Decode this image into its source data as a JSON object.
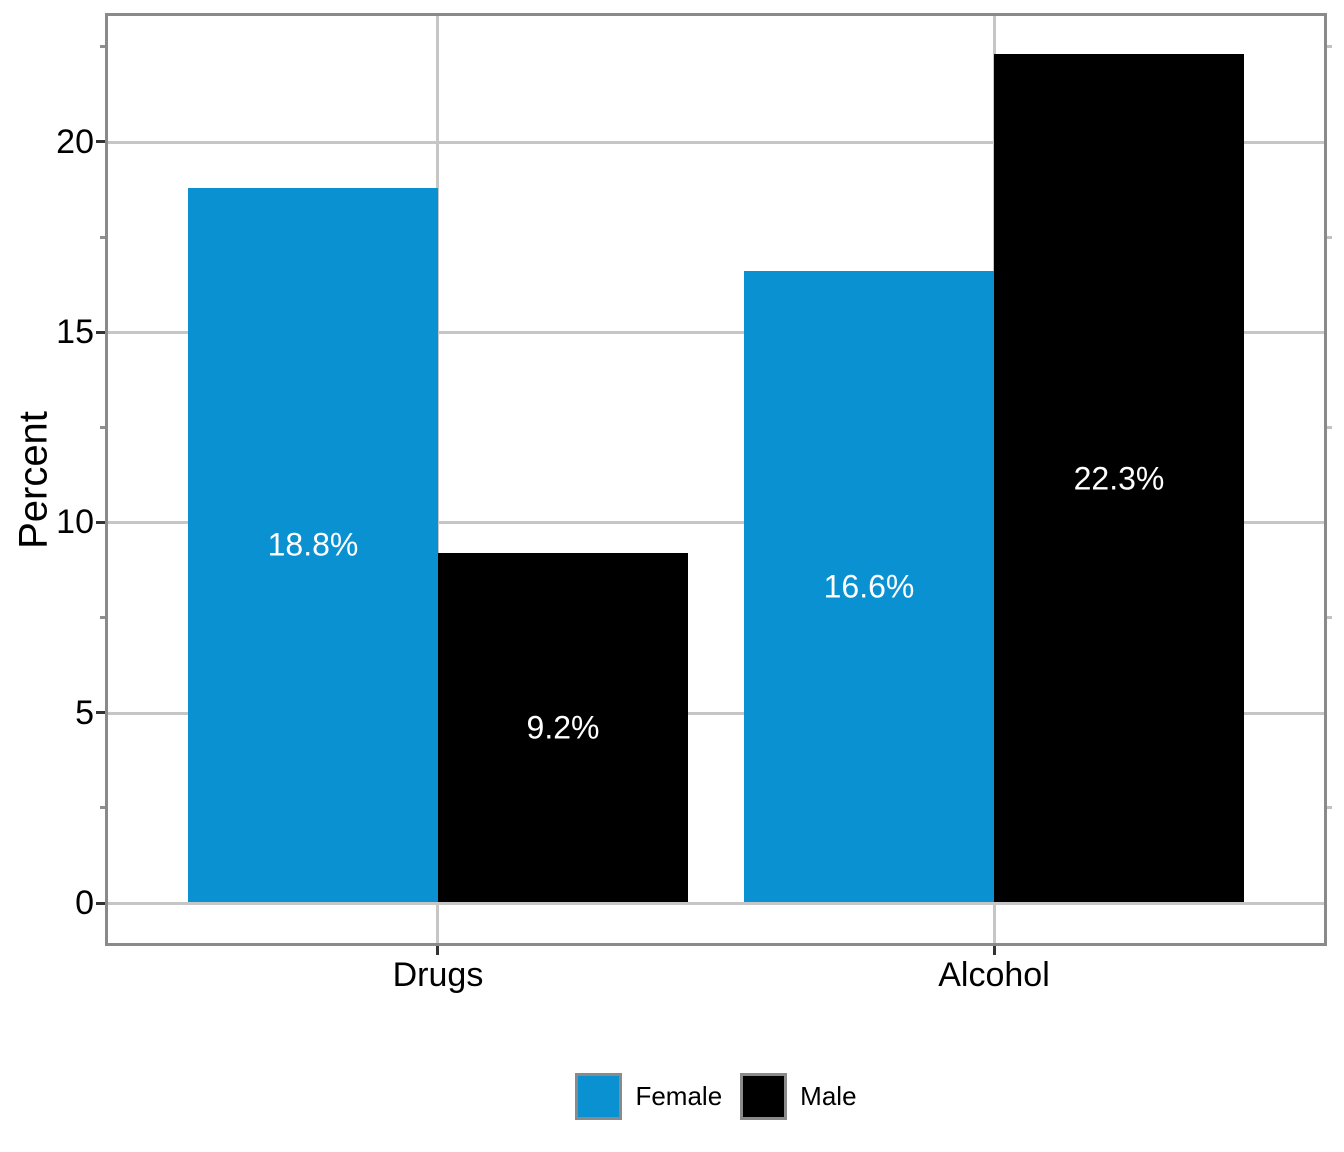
{
  "chart_data": {
    "type": "bar",
    "title": "",
    "categories": [
      "Drugs",
      "Alcohol"
    ],
    "series": [
      {
        "name": "Female",
        "color": "#0991D2",
        "values": [
          18.8,
          16.6
        ],
        "data_labels": [
          "18.8%",
          "16.6%"
        ]
      },
      {
        "name": "Male",
        "color": "#000000",
        "values": [
          9.2,
          22.3
        ],
        "data_labels": [
          "9.2%",
          "22.3%"
        ]
      }
    ],
    "xlabel": "",
    "ylabel": "Percent",
    "y_ticks": [
      0,
      5,
      10,
      15,
      20
    ],
    "y_tick_labels": [
      "0",
      "5",
      "10",
      "15",
      "20"
    ],
    "y_minor_ticks": [
      2.5,
      7.5,
      12.5,
      17.5,
      22.5
    ],
    "ylim": [
      -1.13,
      23.39
    ],
    "grid": true,
    "grid_color": "#C6C6C6",
    "panel_border_color": "#8A8A8A",
    "tick_color": "#333333",
    "bar_label_color": "#ffffff",
    "legend_position": "bottom",
    "legend_items": [
      "Female",
      "Male"
    ]
  }
}
